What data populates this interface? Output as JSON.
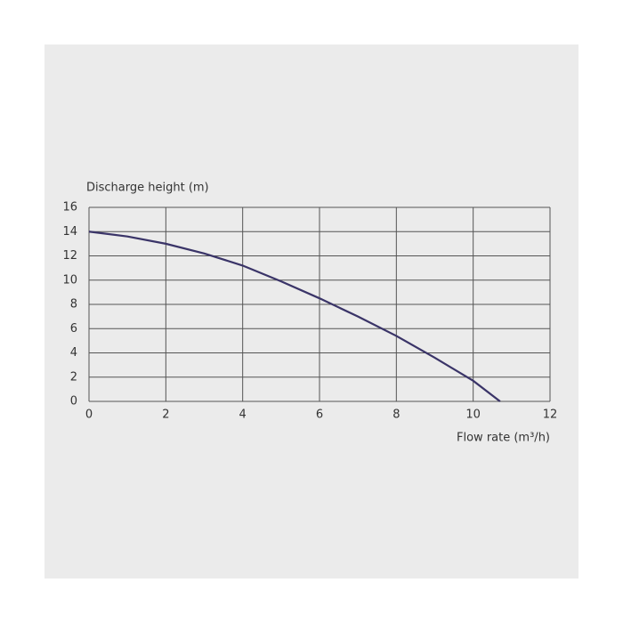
{
  "chart_data": {
    "type": "line",
    "y_label": "Discharge height (m)",
    "x_label": "Flow rate (m³/h)",
    "series": [
      {
        "color": "#3a3468",
        "x": [
          0,
          1,
          2,
          3,
          4,
          5,
          6,
          7,
          8,
          9,
          10,
          10.7
        ],
        "values": [
          14,
          13.6,
          13,
          12.2,
          11.2,
          9.9,
          8.5,
          7,
          5.4,
          3.6,
          1.7,
          0
        ]
      }
    ],
    "xlim": [
      0,
      12
    ],
    "xticks": [
      0,
      2,
      4,
      6,
      8,
      10,
      12
    ],
    "ylim": [
      0,
      16
    ],
    "yticks": [
      0,
      2,
      4,
      6,
      8,
      10,
      12,
      14,
      16
    ],
    "grid": true
  }
}
